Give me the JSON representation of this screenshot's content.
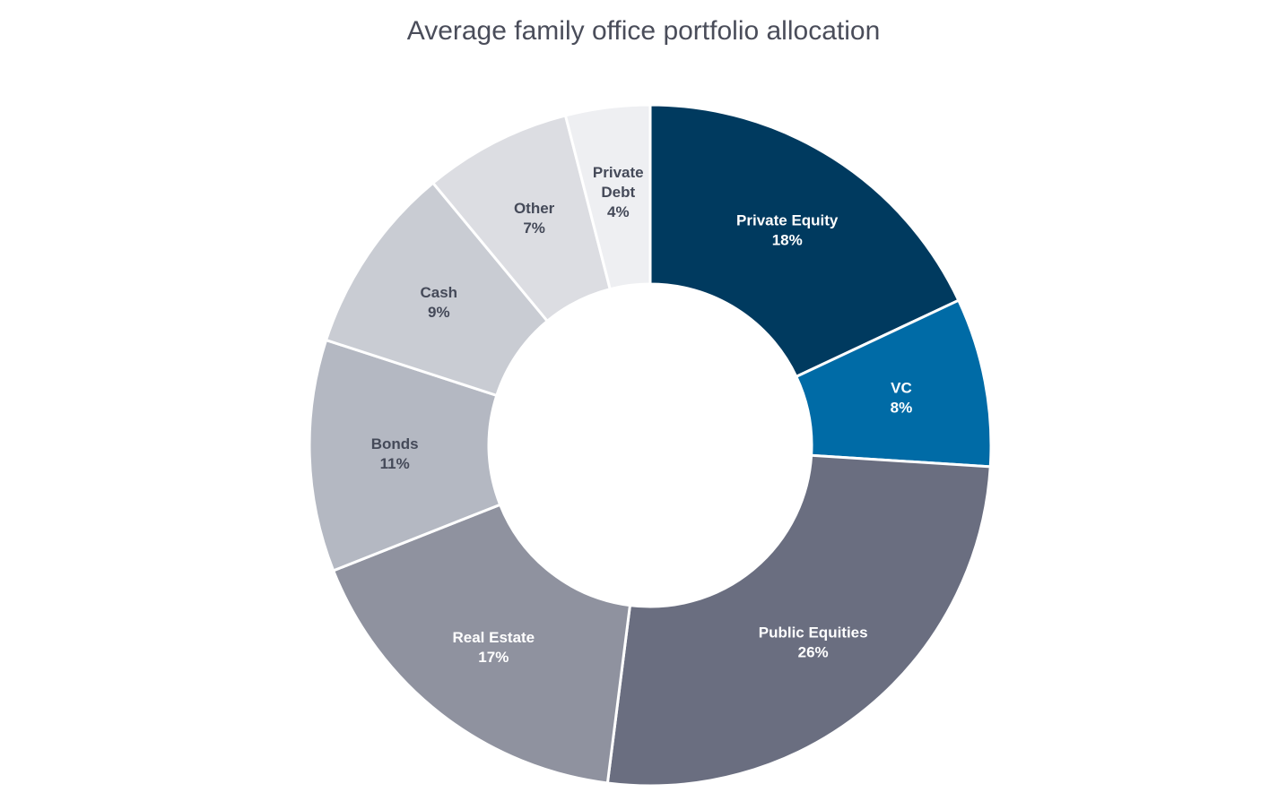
{
  "chart_data": {
    "type": "pie",
    "title": "Average family office portfolio allocation",
    "variant": "donut",
    "slices": [
      {
        "label": "Private Equity",
        "value": 18,
        "value_label": "18%",
        "color": "#003a5f",
        "label_color": "#ffffff"
      },
      {
        "label": "VC",
        "value": 8,
        "value_label": "8%",
        "color": "#006ba6",
        "label_color": "#ffffff"
      },
      {
        "label": "Public Equities",
        "value": 26,
        "value_label": "26%",
        "color": "#6a6e80",
        "label_color": "#ffffff"
      },
      {
        "label": "Real Estate",
        "value": 17,
        "value_label": "17%",
        "color": "#8f929f",
        "label_color": "#ffffff"
      },
      {
        "label": "Bonds",
        "value": 11,
        "value_label": "11%",
        "color": "#b4b8c2",
        "label_color": "#454a59"
      },
      {
        "label": "Cash",
        "value": 9,
        "value_label": "9%",
        "color": "#c9ccd3",
        "label_color": "#454a59"
      },
      {
        "label": "Other",
        "value": 7,
        "value_label": "7%",
        "color": "#dcdde2",
        "label_color": "#454a59"
      },
      {
        "label": "Private Debt",
        "label_lines": [
          "Private",
          "Debt"
        ],
        "value": 4,
        "value_label": "4%",
        "color": "#eeeff2",
        "label_color": "#454a59"
      }
    ]
  }
}
